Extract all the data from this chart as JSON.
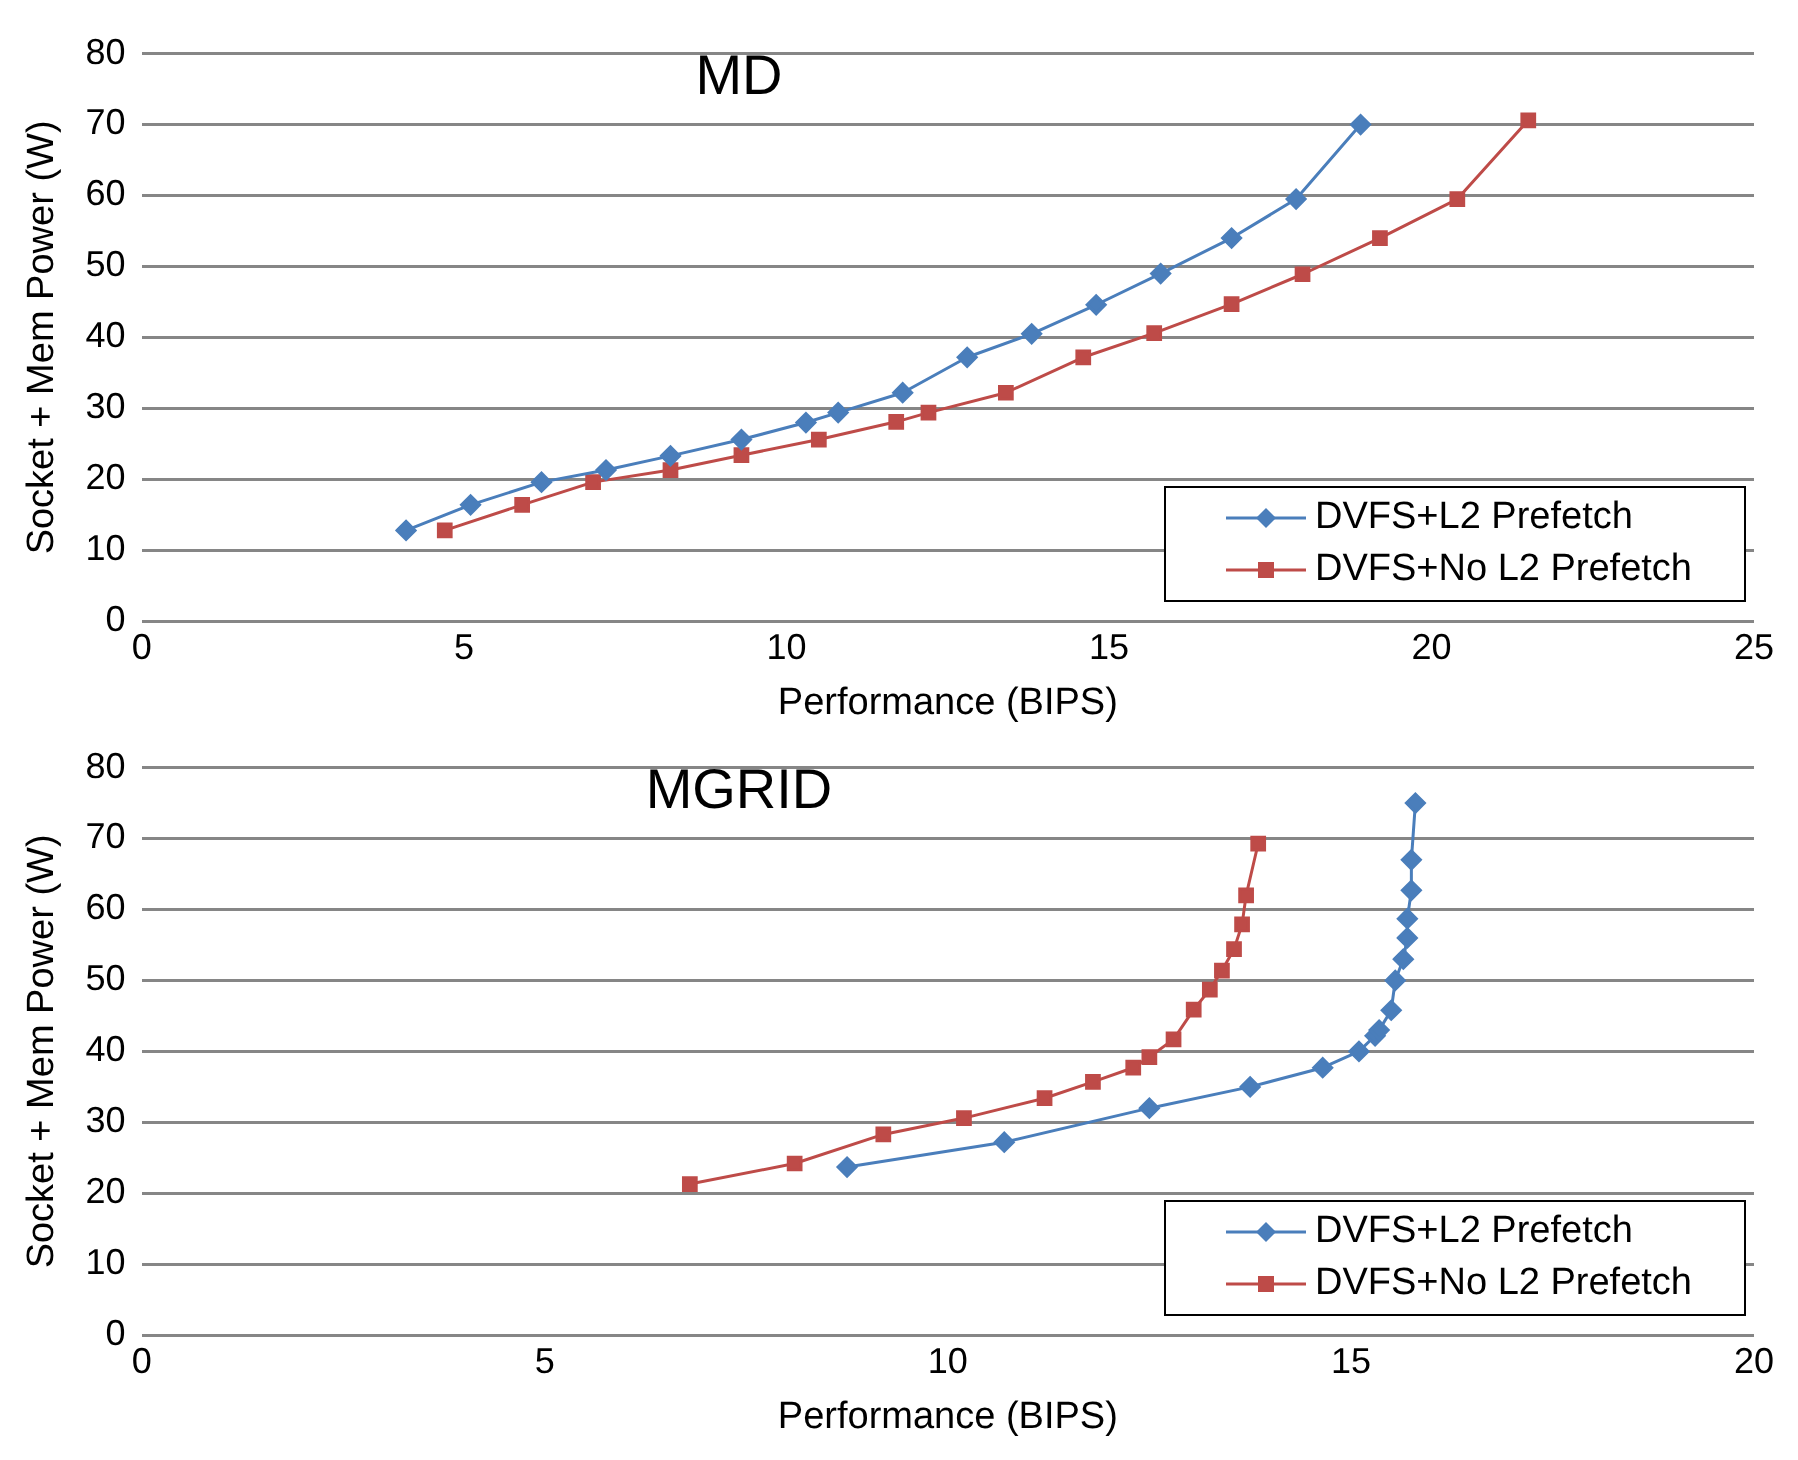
{
  "chart_data": [
    {
      "type": "line",
      "title": "MD",
      "xlabel": "Performance (BIPS)",
      "ylabel": "Socket + Mem Power (W)",
      "xlim": [
        0,
        25
      ],
      "xticks": [
        0,
        5,
        10,
        15,
        20,
        25
      ],
      "ylim": [
        0,
        80
      ],
      "yticks": [
        0,
        10,
        20,
        30,
        40,
        50,
        60,
        70,
        80
      ],
      "grid": "y",
      "legend": "bottom right",
      "series": [
        {
          "name": "DVFS+L2 Prefetch",
          "color": "#4a7ebb",
          "marker": "diamond",
          "x": [
            4.1,
            5.1,
            6.2,
            7.2,
            8.2,
            9.3,
            10.3,
            10.8,
            11.8,
            12.8,
            13.8,
            14.8,
            15.8,
            16.9,
            17.9,
            18.9
          ],
          "values": [
            12.8,
            16.4,
            19.6,
            21.3,
            23.3,
            25.6,
            28,
            29.4,
            32.2,
            37.2,
            40.5,
            44.6,
            49,
            54,
            59.5,
            70
          ]
        },
        {
          "name": "DVFS+No L2 Prefetch",
          "color": "#be4b48",
          "marker": "square",
          "x": [
            4.7,
            5.9,
            7,
            8.2,
            9.3,
            10.5,
            11.7,
            12.2,
            13.4,
            14.6,
            15.7,
            16.9,
            18,
            19.2,
            20.4,
            21.5
          ],
          "values": [
            12.8,
            16.4,
            19.6,
            21.3,
            23.4,
            25.6,
            28.1,
            29.4,
            32.2,
            37.2,
            40.6,
            44.7,
            48.9,
            54,
            59.5,
            70.6
          ]
        }
      ]
    },
    {
      "type": "line",
      "title": "MGRID",
      "xlabel": "Performance (BIPS)",
      "ylabel": "Socket + Mem Power (W)",
      "xlim": [
        0,
        20
      ],
      "xticks": [
        0,
        5,
        10,
        15,
        20
      ],
      "ylim": [
        0,
        80
      ],
      "yticks": [
        0,
        10,
        20,
        30,
        40,
        50,
        60,
        70,
        80
      ],
      "grid": "y",
      "legend": "bottom right",
      "series": [
        {
          "name": "DVFS+L2 Prefetch",
          "color": "#4a7ebb",
          "marker": "diamond",
          "x": [
            8.75,
            10.7,
            12.5,
            13.75,
            14.65,
            15.1,
            15.3,
            15.35,
            15.5,
            15.55,
            15.65,
            15.7,
            15.7,
            15.75,
            15.75,
            15.8
          ],
          "values": [
            23.7,
            27.2,
            32,
            35,
            37.7,
            40,
            42.2,
            43,
            45.8,
            50,
            53,
            56,
            58.7,
            62.7,
            67,
            75
          ]
        },
        {
          "name": "DVFS+No L2 Prefetch",
          "color": "#be4b48",
          "marker": "square",
          "x": [
            6.8,
            8.1,
            9.2,
            10.2,
            11.2,
            11.8,
            12.3,
            12.5,
            12.8,
            13.05,
            13.25,
            13.4,
            13.55,
            13.65,
            13.7,
            13.85
          ],
          "values": [
            21.3,
            24.2,
            28.3,
            30.6,
            33.4,
            35.7,
            37.7,
            39.2,
            41.7,
            45.9,
            48.7,
            51.4,
            54.4,
            57.9,
            62,
            69.3
          ]
        }
      ]
    }
  ]
}
